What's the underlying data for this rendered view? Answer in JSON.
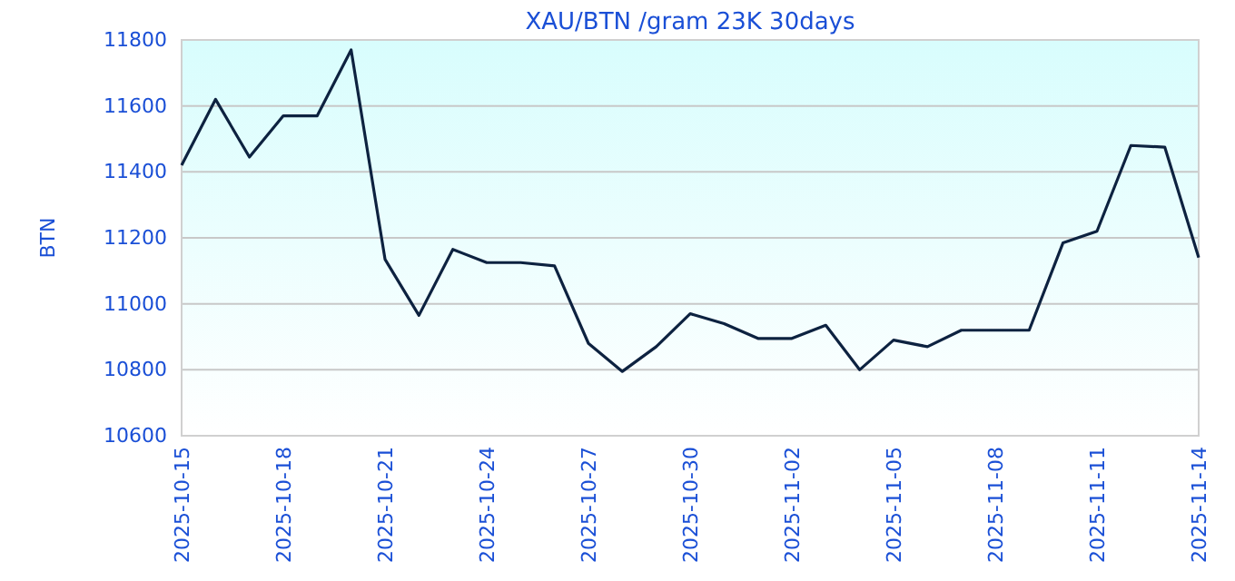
{
  "chart_data": {
    "type": "line",
    "title": "XAU/BTN /gram 23K 30days",
    "ylabel": "BTN",
    "x": [
      "2025-10-15",
      "2025-10-16",
      "2025-10-17",
      "2025-10-18",
      "2025-10-19",
      "2025-10-20",
      "2025-10-21",
      "2025-10-22",
      "2025-10-23",
      "2025-10-24",
      "2025-10-25",
      "2025-10-26",
      "2025-10-27",
      "2025-10-28",
      "2025-10-29",
      "2025-10-30",
      "2025-10-31",
      "2025-11-01",
      "2025-11-02",
      "2025-11-03",
      "2025-11-04",
      "2025-11-05",
      "2025-11-06",
      "2025-11-07",
      "2025-11-08",
      "2025-11-09",
      "2025-11-10",
      "2025-11-11",
      "2025-11-12",
      "2025-11-13",
      "2025-11-14"
    ],
    "series": [
      {
        "color": "#0d2240",
        "values": [
          11420,
          11620,
          11445,
          11570,
          11570,
          11770,
          11135,
          10965,
          11165,
          11125,
          11125,
          11115,
          10880,
          10795,
          10870,
          10970,
          10940,
          10895,
          10895,
          10935,
          10800,
          10890,
          10870,
          10920,
          10920,
          10920,
          11185,
          11220,
          11480,
          11475,
          11140
        ]
      }
    ],
    "xlim": [
      "2025-10-15",
      "2025-11-14"
    ],
    "xticks": [
      {
        "value": "2025-10-15",
        "label": "2025-10-15"
      },
      {
        "value": "2025-10-18",
        "label": "2025-10-18"
      },
      {
        "value": "2025-10-21",
        "label": "2025-10-21"
      },
      {
        "value": "2025-10-24",
        "label": "2025-10-24"
      },
      {
        "value": "2025-10-27",
        "label": "2025-10-27"
      },
      {
        "value": "2025-10-30",
        "label": "2025-10-30"
      },
      {
        "value": "2025-11-02",
        "label": "2025-11-02"
      },
      {
        "value": "2025-11-05",
        "label": "2025-11-05"
      },
      {
        "value": "2025-11-08",
        "label": "2025-11-08"
      },
      {
        "value": "2025-11-11",
        "label": "2025-11-11"
      },
      {
        "value": "2025-11-14",
        "label": "2025-11-14"
      }
    ],
    "ylim": [
      10600,
      11800
    ],
    "yticks": [
      10600,
      10800,
      11000,
      11200,
      11400,
      11600,
      11800
    ],
    "grid": "y",
    "marker": "none",
    "line_style": "solid"
  }
}
